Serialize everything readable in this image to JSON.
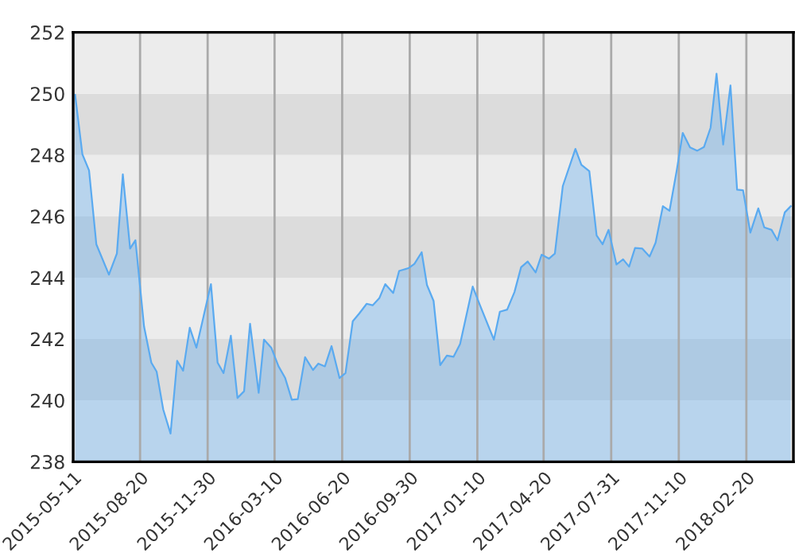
{
  "chart_data": {
    "type": "area",
    "x": [
      "2015-05-14",
      "2015-05-25",
      "2015-06-04",
      "2015-06-15",
      "2015-07-04",
      "2015-07-16",
      "2015-07-25",
      "2015-08-05",
      "2015-08-13",
      "2015-08-26",
      "2015-09-06",
      "2015-09-14",
      "2015-09-24",
      "2015-10-05",
      "2015-10-15",
      "2015-10-24",
      "2015-11-03",
      "2015-11-13",
      "2015-12-05",
      "2015-12-15",
      "2015-12-24",
      "2016-01-04",
      "2016-01-14",
      "2016-01-24",
      "2016-02-02",
      "2016-02-15",
      "2016-02-23",
      "2016-03-05",
      "2016-03-16",
      "2016-03-26",
      "2016-04-05",
      "2016-04-14",
      "2016-04-25",
      "2016-05-07",
      "2016-05-15",
      "2016-05-25",
      "2016-06-04",
      "2016-06-16",
      "2016-06-25",
      "2016-07-06",
      "2016-07-16",
      "2016-07-27",
      "2016-08-05",
      "2016-08-15",
      "2016-08-24",
      "2016-09-05",
      "2016-09-14",
      "2016-09-28",
      "2016-10-07",
      "2016-10-18",
      "2016-10-26",
      "2016-11-05",
      "2016-11-15",
      "2016-11-25",
      "2016-12-05",
      "2016-12-15",
      "2017-01-03",
      "2017-01-14",
      "2017-02-04",
      "2017-02-13",
      "2017-02-24",
      "2017-03-07",
      "2017-03-17",
      "2017-03-27",
      "2017-04-08",
      "2017-04-17",
      "2017-04-28",
      "2017-05-07",
      "2017-05-19",
      "2017-06-07",
      "2017-06-16",
      "2017-06-28",
      "2017-07-09",
      "2017-07-18",
      "2017-07-27",
      "2017-08-08",
      "2017-08-18",
      "2017-08-27",
      "2017-09-05",
      "2017-09-16",
      "2017-09-27",
      "2017-10-06",
      "2017-10-17",
      "2017-10-27",
      "2017-11-07",
      "2017-11-16",
      "2017-11-27",
      "2017-12-08",
      "2017-12-18",
      "2017-12-28",
      "2018-01-06",
      "2018-01-16",
      "2018-01-27",
      "2018-02-06",
      "2018-02-15",
      "2018-02-26",
      "2018-03-10",
      "2018-03-19",
      "2018-03-30",
      "2018-04-08",
      "2018-04-19",
      "2018-04-28"
    ],
    "series": [
      {
        "color": "#5aaaf0",
        "values": [
          249.96,
          248.02,
          247.5,
          245.09,
          244.1,
          244.79,
          247.37,
          244.95,
          245.22,
          242.41,
          241.23,
          240.94,
          239.7,
          238.92,
          241.29,
          240.97,
          242.37,
          241.72,
          243.79,
          241.23,
          240.89,
          242.11,
          240.08,
          240.3,
          242.5,
          240.25,
          241.98,
          241.72,
          241.11,
          240.73,
          240.02,
          240.04,
          241.41,
          240.99,
          241.2,
          241.11,
          241.77,
          240.73,
          240.89,
          242.58,
          242.84,
          243.15,
          243.1,
          243.33,
          243.79,
          243.5,
          244.22,
          244.31,
          244.45,
          244.83,
          243.76,
          243.24,
          241.15,
          241.46,
          241.42,
          241.84,
          243.71,
          243.1,
          241.98,
          242.89,
          242.96,
          243.53,
          244.34,
          244.53,
          244.17,
          244.75,
          244.62,
          244.79,
          246.99,
          248.2,
          247.68,
          247.47,
          245.38,
          245.09,
          245.56,
          244.43,
          244.6,
          244.36,
          244.97,
          244.95,
          244.69,
          245.14,
          246.33,
          246.18,
          247.51,
          248.72,
          248.25,
          248.14,
          248.26,
          248.89,
          250.65,
          248.34,
          250.27,
          246.87,
          246.85,
          245.47,
          246.26,
          245.64,
          245.56,
          245.22,
          246.13,
          246.33
        ]
      }
    ],
    "xlim": [
      "2015-05-11",
      "2018-05-02"
    ],
    "xticks": [
      "2015-05-11",
      "2015-08-20",
      "2015-11-30",
      "2016-03-10",
      "2016-06-20",
      "2016-09-30",
      "2017-01-10",
      "2017-04-20",
      "2017-07-31",
      "2017-11-10",
      "2018-02-20"
    ],
    "ylim": [
      238,
      252
    ],
    "yticks": [
      238,
      240,
      242,
      244,
      246,
      248,
      250,
      252
    ],
    "grid": "x",
    "legend": false
  }
}
